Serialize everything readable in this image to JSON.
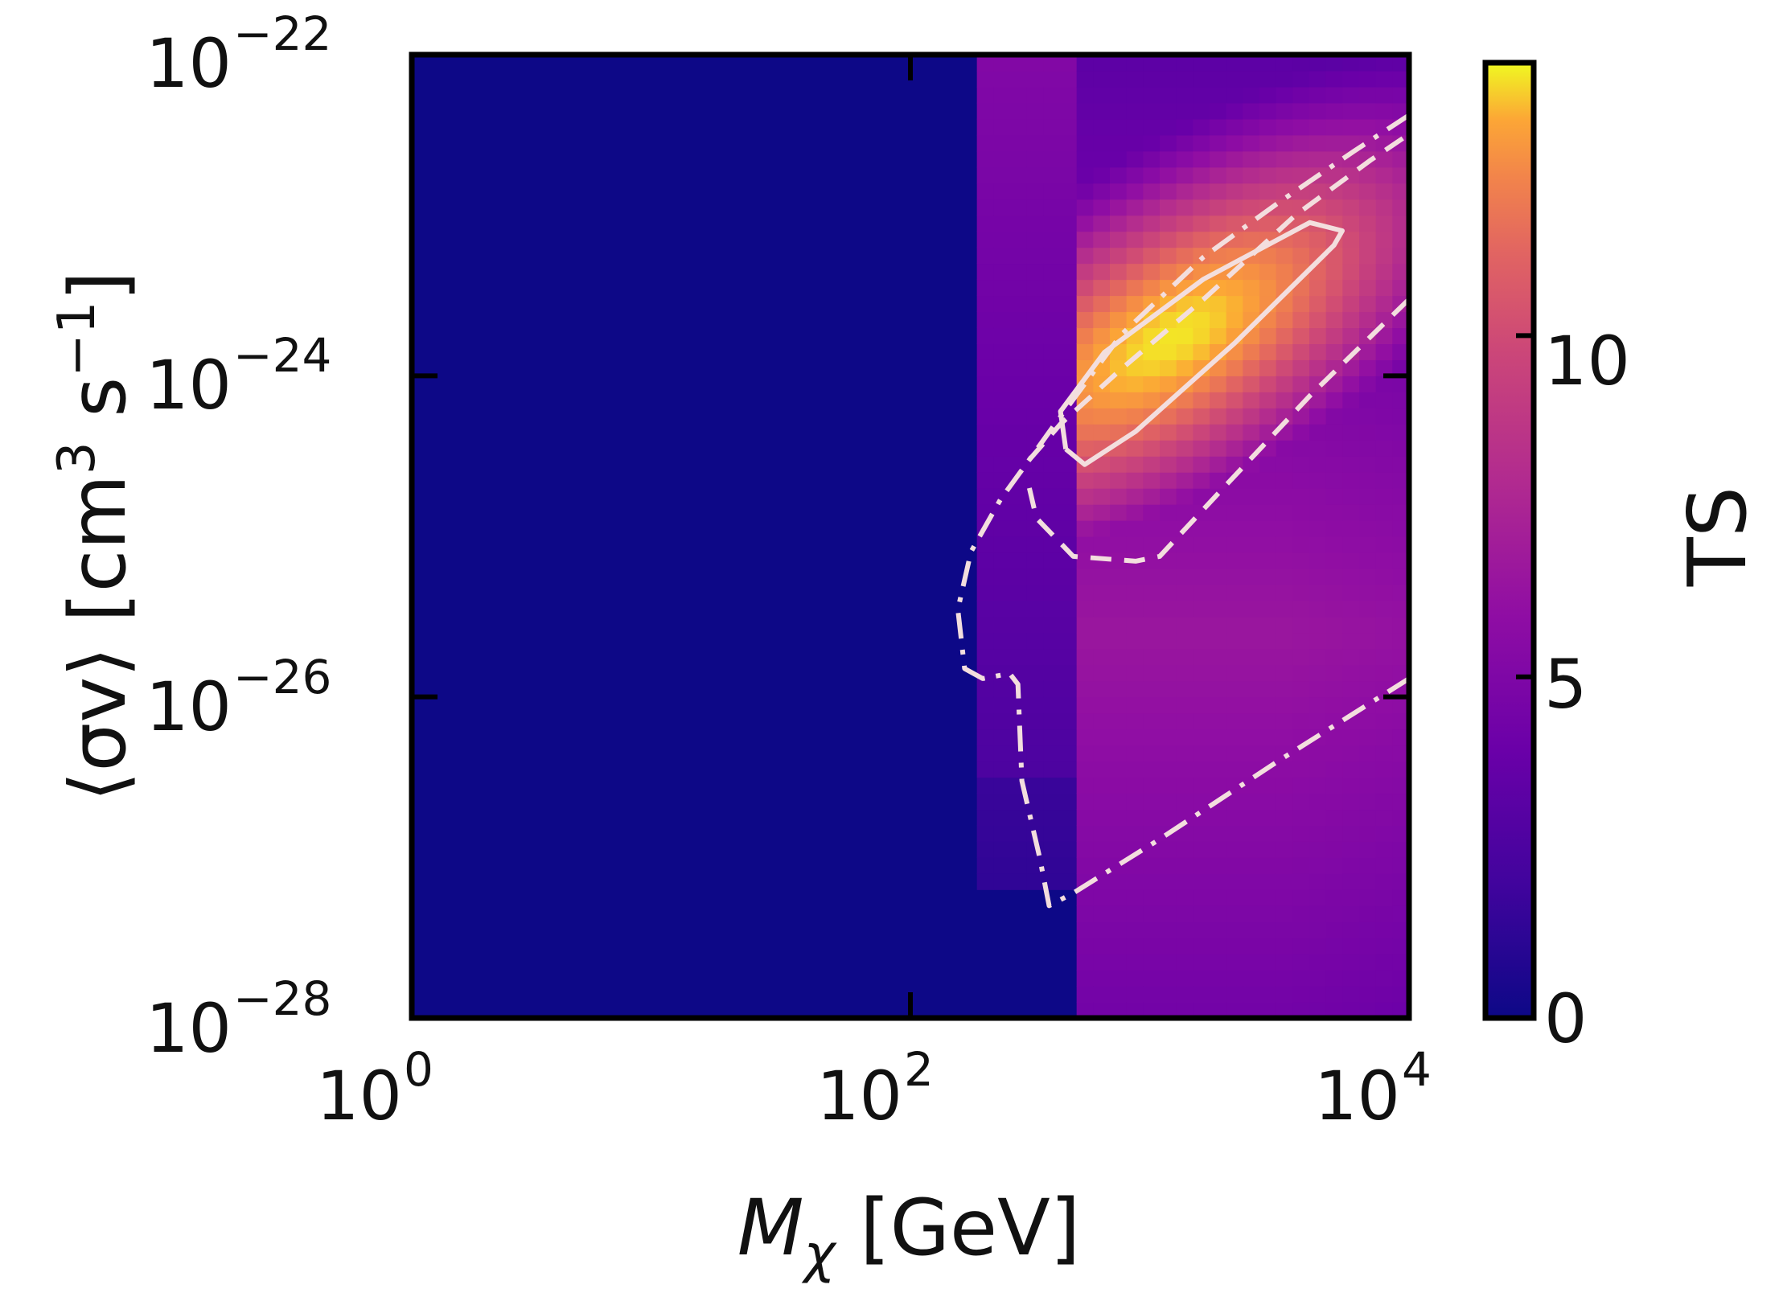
{
  "chart_data": {
    "type": "heatmap",
    "title": "",
    "x_axis": {
      "label_main": "M",
      "label_sub": "χ",
      "label_unit": " [GeV]",
      "scale": "log",
      "range": [
        1,
        10000
      ],
      "ticks": [
        {
          "value": 1,
          "base": "10",
          "exp": "0"
        },
        {
          "value": 100,
          "base": "10",
          "exp": "2"
        },
        {
          "value": 10000,
          "base": "10",
          "exp": "4"
        }
      ]
    },
    "y_axis": {
      "label_left": "⟨σv⟩ [cm",
      "label_exp1": "3",
      "label_mid": " s",
      "label_exp2": "−1",
      "label_right": "]",
      "scale": "log",
      "range": [
        1e-28,
        1e-22
      ],
      "ticks": [
        {
          "value": 1e-28,
          "base": "10",
          "exp": "−28"
        },
        {
          "value": 1e-26,
          "base": "10",
          "exp": "−26"
        },
        {
          "value": 1e-24,
          "base": "10",
          "exp": "−24"
        },
        {
          "value": 1e-22,
          "base": "10",
          "exp": "−22"
        }
      ]
    },
    "colorbar": {
      "label": "TS",
      "colormap": "plasma",
      "range": [
        0,
        14
      ],
      "ticks": [
        {
          "value": 0,
          "label": "0"
        },
        {
          "value": 5,
          "label": "5"
        },
        {
          "value": 10,
          "label": "10"
        }
      ]
    },
    "peak": {
      "mass_gev": 1000,
      "sigma_v": 1.5e-24,
      "ts": 14
    },
    "contours": [
      {
        "style": "solid",
        "color": "#f3dede",
        "points": [
          [
            420,
            3.5e-25
          ],
          [
            500,
            2.8e-25
          ],
          [
            800,
            4.5e-25
          ],
          [
            2000,
            1.6e-24
          ],
          [
            5000,
            6.5e-24
          ],
          [
            5400,
            8e-24
          ],
          [
            4000,
            9e-24
          ],
          [
            1500,
            4e-24
          ],
          [
            600,
            1.4e-24
          ],
          [
            400,
            6e-25
          ],
          [
            420,
            3.5e-25
          ]
        ]
      },
      {
        "style": "dashed",
        "color": "#f3dede",
        "points": [
          [
            300,
            2e-25
          ],
          [
            320,
            1.3e-25
          ],
          [
            450,
            7.5e-26
          ],
          [
            800,
            7e-26
          ],
          [
            1000,
            7.5e-26
          ],
          [
            1800,
            2e-25
          ],
          [
            4000,
            7.5e-25
          ],
          [
            10000,
            3e-24
          ]
        ]
      },
      {
        "style": "dashed",
        "color": "#f3dede",
        "points": [
          [
            300,
            3e-25
          ],
          [
            400,
            5e-25
          ],
          [
            700,
            1.1e-24
          ],
          [
            1500,
            3e-24
          ],
          [
            3500,
            1e-23
          ],
          [
            7000,
            2.2e-23
          ],
          [
            10000,
            3.2e-23
          ]
        ]
      },
      {
        "style": "dashdot",
        "color": "#f3dede",
        "points": [
          [
            10000,
            4.2e-23
          ],
          [
            6000,
            2.5e-23
          ],
          [
            3000,
            1.2e-23
          ],
          [
            1500,
            5.5e-24
          ],
          [
            700,
            1.8e-24
          ],
          [
            380,
            5e-25
          ],
          [
            300,
            3e-25
          ],
          [
            230,
            1.7e-25
          ],
          [
            175,
            8e-26
          ],
          [
            155,
            3.5e-26
          ],
          [
            165,
            1.5e-26
          ],
          [
            195,
            1.3e-26
          ],
          [
            250,
            1.4e-26
          ],
          [
            270,
            1.2e-26
          ],
          [
            280,
            3e-27
          ],
          [
            330,
            1e-27
          ],
          [
            360,
            5e-28
          ],
          [
            450,
            6e-28
          ],
          [
            1000,
            1.3e-27
          ],
          [
            3000,
            4e-27
          ],
          [
            10000,
            1.3e-26
          ]
        ]
      }
    ]
  }
}
